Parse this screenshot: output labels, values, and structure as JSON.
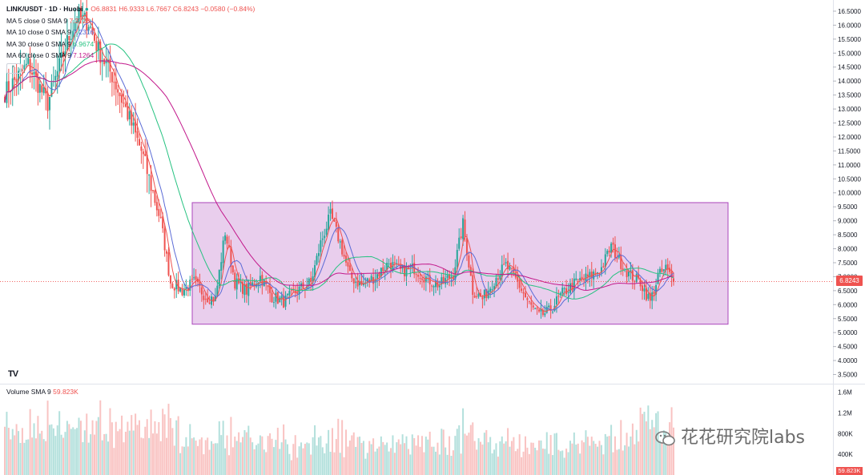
{
  "legend": {
    "symbol": "LINK/USDT · 1D · Huobi",
    "ohlc": "O6.8831 H6.9333 L6.7667 C6.8243 −0.0580 (−0.84%)",
    "ma": [
      {
        "label": "MA 5 close 0 SMA 9",
        "value": "7.3728",
        "color": "#ef5350"
      },
      {
        "label": "MA 10 close 0 SMA 9",
        "value": "7.2316",
        "color": "#5b6bd6"
      },
      {
        "label": "MA 30 close 0 SMA 9",
        "value": "6.9674",
        "color": "#26c281"
      },
      {
        "label": "MA 60 close 0 SMA 9",
        "value": "7.1264",
        "color": "#c2188b"
      }
    ],
    "pill": "^"
  },
  "volume_legend": {
    "label": "Volume SMA 9",
    "value": "59.823K"
  },
  "last_price_tag": "6.8243",
  "volume_tag": "59.823K",
  "logo_text": "TV",
  "watermark": "花花研究院labs",
  "colors": {
    "up": "#26a69a",
    "down": "#ef5350",
    "box_fill": "#e1bee7",
    "box_stroke": "#ab47bc"
  },
  "chart_data": {
    "type": "candlestick",
    "price_axis": {
      "ylim": [
        3.2,
        16.9
      ],
      "ticks": [
        "16.5000",
        "16.0000",
        "15.5000",
        "15.0000",
        "14.5000",
        "14.0000",
        "13.5000",
        "13.0000",
        "12.5000",
        "12.0000",
        "11.5000",
        "11.0000",
        "10.5000",
        "10.0000",
        "9.5000",
        "9.0000",
        "8.5000",
        "8.0000",
        "7.5000",
        "7.0000",
        "6.5000",
        "6.0000",
        "5.5000",
        "5.0000",
        "4.5000",
        "4.0000",
        "3.5000"
      ]
    },
    "volume_axis": {
      "ylim": [
        0,
        1750000
      ],
      "ticks": [
        {
          "label": "1.6M",
          "v": 1600000
        },
        {
          "label": "1.2M",
          "v": 1200000
        },
        {
          "label": "800K",
          "v": 800000
        },
        {
          "label": "400K",
          "v": 400000
        }
      ]
    },
    "anchors": [
      [
        0,
        13.6
      ],
      [
        12,
        14.6
      ],
      [
        22,
        13.2
      ],
      [
        32,
        15.4
      ],
      [
        37,
        16.3
      ],
      [
        43,
        16.1
      ],
      [
        48,
        15.1
      ],
      [
        55,
        14.2
      ],
      [
        62,
        13.0
      ],
      [
        70,
        11.5
      ],
      [
        80,
        9.0
      ],
      [
        85,
        6.8
      ],
      [
        91,
        6.5
      ],
      [
        97,
        6.8
      ],
      [
        103,
        6.3
      ],
      [
        108,
        6.2
      ],
      [
        113,
        8.6
      ],
      [
        118,
        6.8
      ],
      [
        124,
        6.5
      ],
      [
        131,
        7.0
      ],
      [
        137,
        6.3
      ],
      [
        143,
        6.1
      ],
      [
        150,
        6.5
      ],
      [
        157,
        6.8
      ],
      [
        162,
        8.2
      ],
      [
        167,
        9.2
      ],
      [
        172,
        8.2
      ],
      [
        177,
        7.0
      ],
      [
        183,
        6.7
      ],
      [
        190,
        7.0
      ],
      [
        197,
        7.5
      ],
      [
        203,
        7.2
      ],
      [
        210,
        7.3
      ],
      [
        217,
        6.9
      ],
      [
        223,
        6.7
      ],
      [
        230,
        7.1
      ],
      [
        235,
        8.9
      ],
      [
        240,
        6.5
      ],
      [
        245,
        6.2
      ],
      [
        252,
        7.0
      ],
      [
        257,
        7.4
      ],
      [
        263,
        6.8
      ],
      [
        269,
        6.0
      ],
      [
        274,
        5.6
      ],
      [
        279,
        5.75
      ],
      [
        286,
        6.4
      ],
      [
        293,
        6.8
      ],
      [
        300,
        7.0
      ],
      [
        306,
        7.3
      ],
      [
        311,
        8.1
      ],
      [
        315,
        7.6
      ],
      [
        320,
        7.1
      ],
      [
        326,
        6.8
      ],
      [
        331,
        6.1
      ],
      [
        335,
        7.0
      ],
      [
        339,
        7.3
      ],
      [
        343,
        6.82
      ]
    ],
    "highlight_box": {
      "price_high": 9.65,
      "price_low": 5.3
    }
  }
}
